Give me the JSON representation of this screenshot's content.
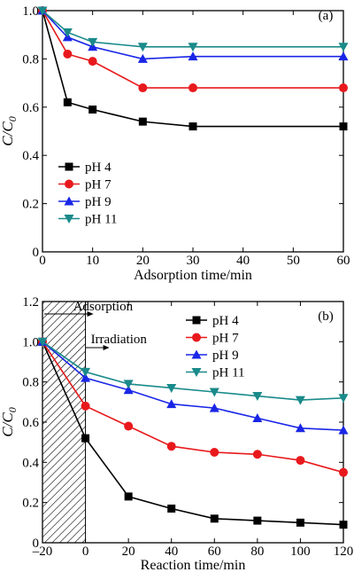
{
  "chart_data": [
    {
      "type": "line",
      "panel_label": "(a)",
      "xlabel": "Adsorption time/min",
      "ylabel": "C/C0",
      "xlim": [
        0,
        60
      ],
      "ylim": [
        0,
        1.0
      ],
      "xticks": [
        0,
        10,
        20,
        30,
        40,
        50,
        60
      ],
      "yticks": [
        0,
        0.2,
        0.4,
        0.6,
        0.8,
        1.0
      ],
      "ytick_labels": [
        "0",
        "0.2",
        "0.4",
        "0.6",
        "0.8",
        "1.0"
      ],
      "legend_position": "lower-left",
      "series": [
        {
          "name": "pH 4",
          "color": "#000000",
          "marker": "square",
          "x": [
            0,
            5,
            10,
            20,
            30,
            60
          ],
          "y": [
            1.0,
            0.62,
            0.59,
            0.54,
            0.52,
            0.52
          ]
        },
        {
          "name": "pH 7",
          "color": "#e8191c",
          "marker": "circle",
          "x": [
            0,
            5,
            10,
            20,
            30,
            60
          ],
          "y": [
            1.0,
            0.82,
            0.79,
            0.68,
            0.68,
            0.68
          ]
        },
        {
          "name": "pH 9",
          "color": "#1a26e6",
          "marker": "triangle-up",
          "x": [
            0,
            5,
            10,
            20,
            30,
            60
          ],
          "y": [
            1.0,
            0.89,
            0.85,
            0.8,
            0.81,
            0.81
          ]
        },
        {
          "name": "pH 11",
          "color": "#1a8a8a",
          "marker": "triangle-down",
          "x": [
            0,
            5,
            10,
            20,
            30,
            60
          ],
          "y": [
            1.0,
            0.91,
            0.87,
            0.85,
            0.85,
            0.85
          ]
        }
      ]
    },
    {
      "type": "line",
      "panel_label": "(b)",
      "xlabel": "Reaction time/min",
      "ylabel": "C/C0",
      "xlim": [
        -20,
        120
      ],
      "ylim": [
        0,
        1.2
      ],
      "xticks": [
        -20,
        0,
        20,
        40,
        60,
        80,
        100,
        120
      ],
      "xtick_labels": [
        "–20",
        "0",
        "20",
        "40",
        "60",
        "80",
        "100",
        "120"
      ],
      "yticks": [
        0,
        0.2,
        0.4,
        0.6,
        0.8,
        1.0,
        1.2
      ],
      "ytick_labels": [
        "0",
        "0.2",
        "0.4",
        "0.6",
        "0.8",
        "1.0",
        "1.2"
      ],
      "legend_position": "upper-right",
      "shaded_region": {
        "x": [
          -20,
          0
        ],
        "pattern": "hatched"
      },
      "annotations": [
        "Adsorption",
        "Irradiation"
      ],
      "series": [
        {
          "name": "pH 4",
          "color": "#000000",
          "marker": "square",
          "x": [
            -20,
            0,
            20,
            40,
            60,
            80,
            100,
            120
          ],
          "y": [
            1.0,
            0.52,
            0.23,
            0.17,
            0.12,
            0.11,
            0.1,
            0.09
          ]
        },
        {
          "name": "pH 7",
          "color": "#e8191c",
          "marker": "circle",
          "x": [
            -20,
            0,
            20,
            40,
            60,
            80,
            100,
            120
          ],
          "y": [
            1.0,
            0.68,
            0.58,
            0.48,
            0.45,
            0.44,
            0.41,
            0.35
          ]
        },
        {
          "name": "pH 9",
          "color": "#1a26e6",
          "marker": "triangle-up",
          "x": [
            -20,
            0,
            20,
            40,
            60,
            80,
            100,
            120
          ],
          "y": [
            1.0,
            0.82,
            0.76,
            0.69,
            0.67,
            0.62,
            0.57,
            0.56
          ]
        },
        {
          "name": "pH 11",
          "color": "#1a8a8a",
          "marker": "triangle-down",
          "x": [
            -20,
            0,
            20,
            40,
            60,
            80,
            100,
            120
          ],
          "y": [
            1.0,
            0.85,
            0.79,
            0.77,
            0.75,
            0.73,
            0.71,
            0.72
          ]
        }
      ]
    }
  ]
}
